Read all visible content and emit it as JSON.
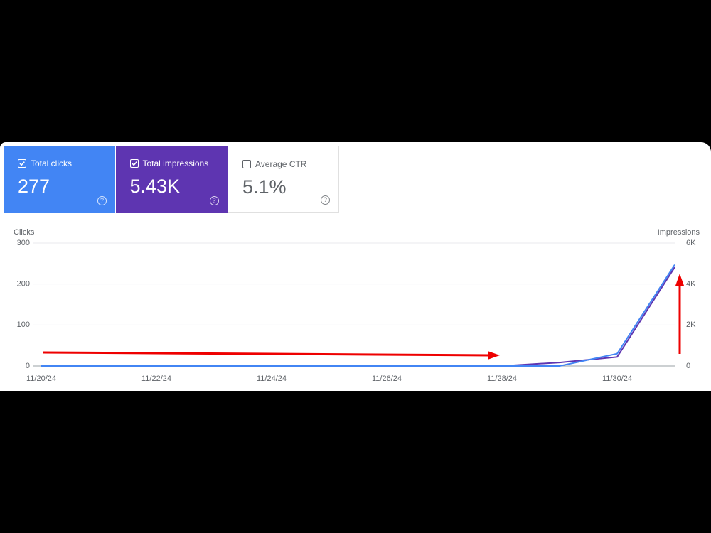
{
  "cards": [
    {
      "title": "Total clicks",
      "value": "277",
      "checked": true,
      "color": "#4285f4"
    },
    {
      "title": "Total impressions",
      "value": "5.43K",
      "checked": true,
      "color": "#5e35b1"
    },
    {
      "title": "Average CTR",
      "value": "5.1%",
      "checked": false,
      "color": "#ffffff"
    }
  ],
  "chart_data": {
    "type": "line",
    "y_label": "Clicks",
    "y2_label": "Impressions",
    "categories": [
      "11/20/24",
      null,
      "11/22/24",
      null,
      "11/24/24",
      null,
      "11/26/24",
      null,
      "11/28/24",
      null,
      "11/30/24",
      null
    ],
    "series": [
      {
        "name": "Clicks",
        "color": "#4285f4",
        "values": [
          0,
          0,
          0,
          0,
          0,
          0,
          0,
          0,
          0,
          0,
          30,
          247
        ]
      },
      {
        "name": "Impressions",
        "color": "#5e35b1",
        "axis": "y2",
        "values": [
          0,
          0,
          0,
          0,
          0,
          0,
          0,
          0,
          0,
          170,
          440,
          4820
        ]
      }
    ],
    "ylim": [
      0,
      300
    ],
    "yticks": [
      0,
      100,
      200,
      300
    ],
    "y2lim": [
      0,
      6000
    ],
    "y2ticks": [
      0,
      {
        "value": 2000,
        "label": "2K"
      },
      {
        "value": 4000,
        "label": "4K"
      },
      {
        "value": 6000,
        "label": "6K"
      }
    ],
    "grid": true
  }
}
